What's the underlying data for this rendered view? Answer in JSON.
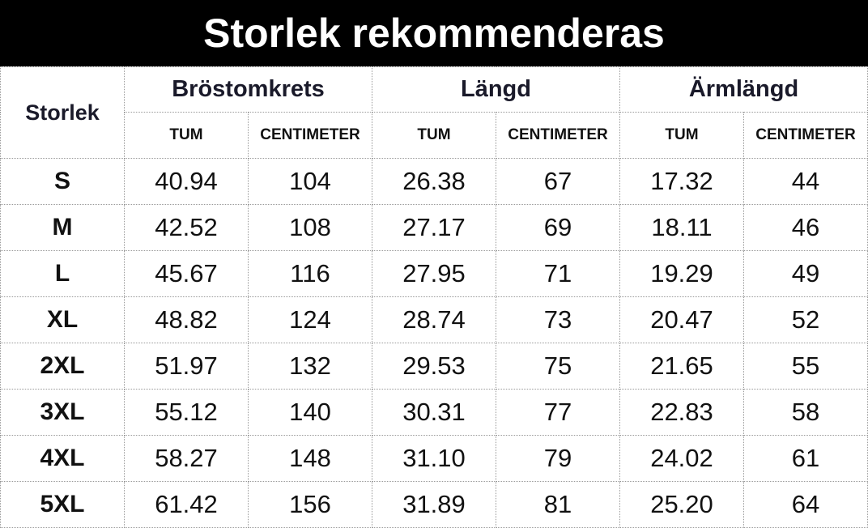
{
  "header": {
    "title": "Storlek rekommenderas"
  },
  "table": {
    "corner": "Storlek",
    "groups": [
      "Bröstomkrets",
      "Längd",
      "Ärmlängd"
    ],
    "subheaders": [
      "TUM",
      "CENTIMETER",
      "TUM",
      "CENTIMETER",
      "TUM",
      "CENTIMETER"
    ],
    "rows": [
      [
        "S",
        "40.94",
        "104",
        "26.38",
        "67",
        "17.32",
        "44"
      ],
      [
        "M",
        "42.52",
        "108",
        "27.17",
        "69",
        "18.11",
        "46"
      ],
      [
        "L",
        "45.67",
        "116",
        "27.95",
        "71",
        "19.29",
        "49"
      ],
      [
        "XL",
        "48.82",
        "124",
        "28.74",
        "73",
        "20.47",
        "52"
      ],
      [
        "2XL",
        "51.97",
        "132",
        "29.53",
        "75",
        "21.65",
        "55"
      ],
      [
        "3XL",
        "55.12",
        "140",
        "30.31",
        "77",
        "22.83",
        "58"
      ],
      [
        "4XL",
        "58.27",
        "148",
        "31.10",
        "79",
        "24.02",
        "61"
      ],
      [
        "5XL",
        "61.42",
        "156",
        "31.89",
        "81",
        "25.20",
        "64"
      ]
    ]
  }
}
